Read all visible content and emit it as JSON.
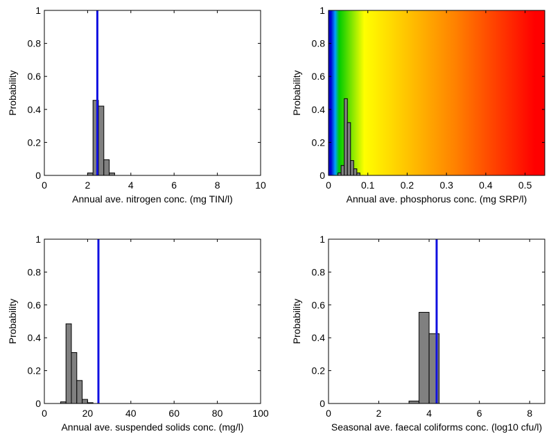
{
  "chart_data": [
    {
      "type": "bar",
      "ylabel": "Probability",
      "xlabel": "Annual ave. nitrogen conc. (mg TIN/l)",
      "xlim": [
        0,
        10
      ],
      "ylim": [
        0,
        1
      ],
      "xticks": [
        0,
        2,
        4,
        6,
        8,
        10
      ],
      "yticks": [
        0,
        0.2,
        0.4,
        0.6,
        0.8,
        1
      ],
      "bin_width": 0.25,
      "bins": [
        {
          "x0": 2.0,
          "value": 0.015
        },
        {
          "x0": 2.25,
          "value": 0.455
        },
        {
          "x0": 2.5,
          "value": 0.42
        },
        {
          "x0": 2.75,
          "value": 0.095
        },
        {
          "x0": 3.0,
          "value": 0.015
        }
      ],
      "vline": 2.45,
      "bar_color": "#808080",
      "vline_color": "#1010e0"
    },
    {
      "type": "bar",
      "ylabel": "Probability",
      "xlabel": "Annual ave. phosphorus conc. (mg SRP/l)",
      "xlim": [
        0,
        0.55
      ],
      "ylim": [
        0,
        1
      ],
      "xticks": [
        0,
        0.1,
        0.2,
        0.3,
        0.4,
        0.5
      ],
      "yticks": [
        0,
        0.2,
        0.4,
        0.6,
        0.8,
        1
      ],
      "bin_width": 0.008,
      "bins": [
        {
          "x0": 0.024,
          "value": 0.015
        },
        {
          "x0": 0.032,
          "value": 0.06
        },
        {
          "x0": 0.04,
          "value": 0.465
        },
        {
          "x0": 0.048,
          "value": 0.32
        },
        {
          "x0": 0.056,
          "value": 0.09
        },
        {
          "x0": 0.064,
          "value": 0.04
        },
        {
          "x0": 0.072,
          "value": 0.015
        }
      ],
      "background_bands": [
        {
          "from": 0,
          "to": 0.012,
          "color": "#0000cc"
        },
        {
          "from": 0.012,
          "to": 0.022,
          "color": "#00a0ff"
        },
        {
          "from": 0.022,
          "to": 0.032,
          "color": "#00cc00"
        },
        {
          "from": 0.032,
          "to": 0.15,
          "color": "#ffff00"
        },
        {
          "from": 0.15,
          "to": 0.5,
          "color": "#ff8000"
        },
        {
          "from": 0.5,
          "to": 0.55,
          "color": "#ff0000"
        }
      ],
      "bar_color": "#808080"
    },
    {
      "type": "bar",
      "ylabel": "Probability",
      "xlabel": "Annual ave. suspended solids conc. (mg/l)",
      "xlim": [
        0,
        100
      ],
      "ylim": [
        0,
        1
      ],
      "xticks": [
        0,
        20,
        40,
        60,
        80,
        100
      ],
      "yticks": [
        0,
        0.2,
        0.4,
        0.6,
        0.8,
        1
      ],
      "bin_width": 2.5,
      "bins": [
        {
          "x0": 7.5,
          "value": 0.01
        },
        {
          "x0": 10.0,
          "value": 0.485
        },
        {
          "x0": 12.5,
          "value": 0.31
        },
        {
          "x0": 15.0,
          "value": 0.14
        },
        {
          "x0": 17.5,
          "value": 0.025
        },
        {
          "x0": 20.0,
          "value": 0.005
        }
      ],
      "vline": 25,
      "bar_color": "#808080",
      "vline_color": "#1010e0"
    },
    {
      "type": "bar",
      "ylabel": "Probability",
      "xlabel": "Seasonal ave. faecal coliforms conc. (log10 cfu/l)",
      "xlim": [
        0,
        8.6
      ],
      "ylim": [
        0,
        1
      ],
      "xticks": [
        0,
        2,
        4,
        6,
        8
      ],
      "yticks": [
        0,
        0.2,
        0.4,
        0.6,
        0.8,
        1
      ],
      "bin_width": 0.4,
      "bins": [
        {
          "x0": 3.2,
          "value": 0.015
        },
        {
          "x0": 3.6,
          "value": 0.555
        },
        {
          "x0": 4.0,
          "value": 0.425
        }
      ],
      "vline": 4.3,
      "bar_color": "#808080",
      "vline_color": "#1010e0"
    }
  ]
}
